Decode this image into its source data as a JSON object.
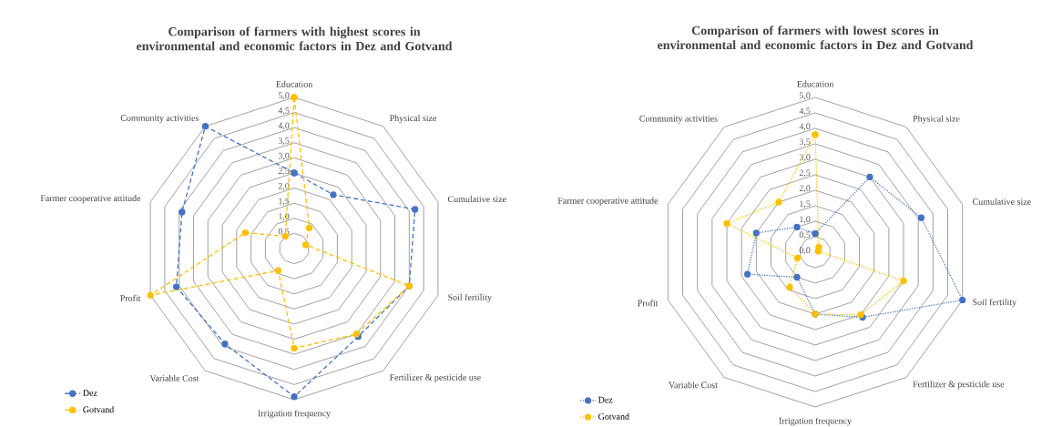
{
  "chart_data": [
    {
      "type": "radar",
      "title": "Comparison of farmers with highest scores in environmental and economic factors in Dez and Gotvand",
      "categories": [
        "Education",
        "Physical size",
        "Cumulative size",
        "Soil fertility",
        "Fertilizer & pesticide use",
        "Irrigation frequency",
        "Variable Cost",
        "Profit",
        "Farmer cooperative attitude",
        "Community activities"
      ],
      "series": [
        {
          "name": "Dez",
          "color": "#4472c4",
          "values": [
            2.5,
            2.2,
            4.2,
            4.0,
            3.6,
            4.9,
            3.9,
            4.1,
            3.9,
            5.0
          ]
        },
        {
          "name": "Gotvand",
          "color": "#ffc000",
          "values": [
            5.0,
            0.85,
            0.4,
            4.0,
            3.5,
            3.3,
            0.9,
            5.0,
            1.7,
            0.5
          ]
        }
      ],
      "ylim": [
        0,
        5
      ],
      "yticks": [
        {
          "value": 0.5,
          "label": "0,5"
        },
        {
          "value": 1.0,
          "label": "1,0"
        },
        {
          "value": 1.5,
          "label": "1,5"
        },
        {
          "value": 2.0,
          "label": "2,0"
        },
        {
          "value": 2.5,
          "label": "2,5"
        },
        {
          "value": 3.0,
          "label": "3,0"
        },
        {
          "value": 3.5,
          "label": "3,5"
        },
        {
          "value": 4.0,
          "label": "4,0"
        },
        {
          "value": 4.5,
          "label": "4,5"
        },
        {
          "value": 5.0,
          "label": "5,0"
        }
      ],
      "grid": true,
      "legend": "bottom left",
      "marker": "circle",
      "line_style": "dashed"
    },
    {
      "type": "radar",
      "title": "Comparison of farmers with lowest scores in environmental and economic factors in Dez and Gotvand",
      "categories": [
        "Education",
        "Physical size",
        "Cumulative size",
        "Soil fertility",
        "Fertilizer & pesticide use",
        "Irrigation frequency",
        "Variable Cost",
        "Profit",
        "Farmer cooperative attitude",
        "Community activities"
      ],
      "series": [
        {
          "name": "Dez",
          "color": "#4472c4",
          "values": [
            0.6,
            3.0,
            3.6,
            5.0,
            2.6,
            2.0,
            1.0,
            2.3,
            2.0,
            1.0
          ]
        },
        {
          "name": "Gotvand",
          "color": "#ffc000",
          "values": [
            3.8,
            0.2,
            0.1,
            3.0,
            2.5,
            2.0,
            1.4,
            0.6,
            3.0,
            2.0
          ]
        }
      ],
      "ylim": [
        0,
        5
      ],
      "yticks": [
        {
          "value": 0.0,
          "label": "0,0"
        },
        {
          "value": 0.5,
          "label": "0,5"
        },
        {
          "value": 1.0,
          "label": "1,0"
        },
        {
          "value": 1.5,
          "label": "1,5"
        },
        {
          "value": 2.0,
          "label": "2,0"
        },
        {
          "value": 2.5,
          "label": "2,5"
        },
        {
          "value": 3.0,
          "label": "3,0"
        },
        {
          "value": 3.5,
          "label": "3,5"
        },
        {
          "value": 4.0,
          "label": "4,0"
        },
        {
          "value": 4.5,
          "label": "4,5"
        },
        {
          "value": 5.0,
          "label": "5,0"
        }
      ],
      "grid": true,
      "legend": "bottom left",
      "marker": "circle",
      "line_style": "dotted"
    }
  ]
}
